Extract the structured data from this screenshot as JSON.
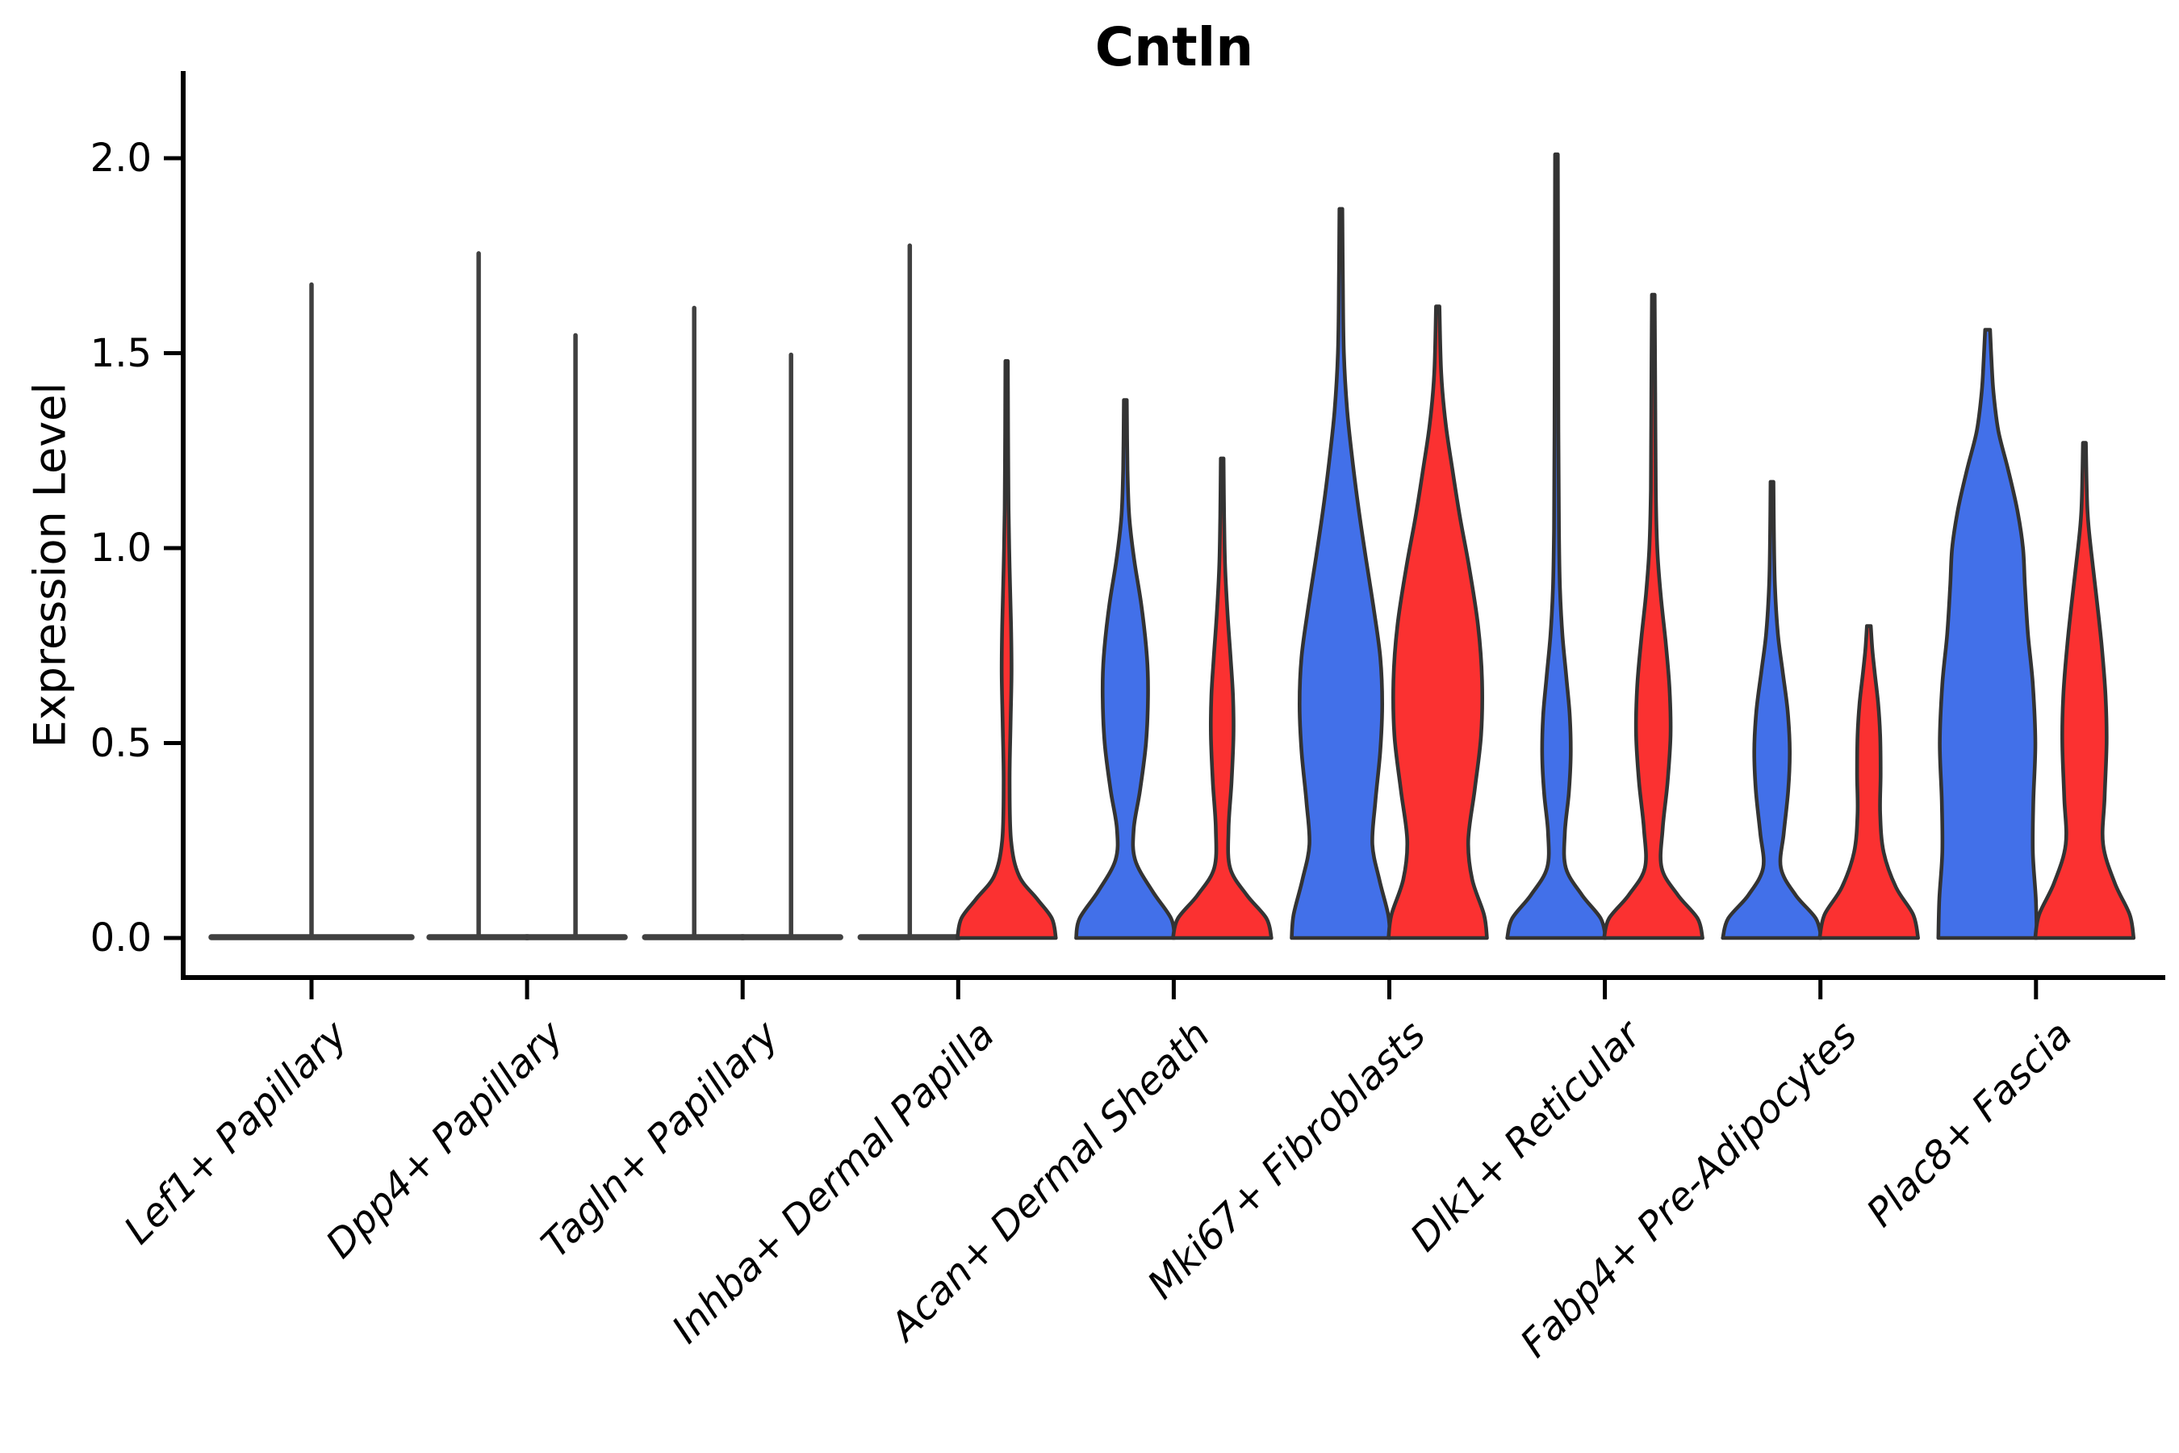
{
  "chart_data": {
    "type": "violin",
    "title": "Cntln",
    "ylabel": "Expression Level",
    "xlabel": "",
    "ylim": [
      0.0,
      2.07
    ],
    "grid": false,
    "legend": null,
    "x_label_rotation_deg": 45,
    "x_label_italic": true,
    "colors": {
      "blue": "#4270E9",
      "red": "#FB3131",
      "outline": "#333333",
      "collapsed_line": "#404040",
      "axis": "#000000"
    },
    "yticks": [
      {
        "value": 0.0,
        "label": "0.0"
      },
      {
        "value": 0.5,
        "label": "0.5"
      },
      {
        "value": 1.0,
        "label": "1.0"
      },
      {
        "value": 1.5,
        "label": "1.5"
      },
      {
        "value": 2.0,
        "label": "2.0"
      }
    ],
    "categories": [
      "Lef1+ Papillary",
      "Dpp4+ Papillary",
      "Tagln+ Papillary",
      "Inhba+ Dermal Papilla",
      "Acan+ Dermal Sheath",
      "Mki67+ Fibroblasts",
      "Dlk1+ Reticular",
      "Fabp4+ Pre-Adipocytes",
      "Plac8+ Fascia"
    ],
    "groups": [
      {
        "category": "Lef1+ Papillary",
        "violins": [
          {
            "hue": null,
            "position": "center",
            "collapsed": true,
            "max": 1.68,
            "wide": true
          }
        ]
      },
      {
        "category": "Dpp4+ Papillary",
        "violins": [
          {
            "hue": "blue",
            "position": "left",
            "collapsed": true,
            "max": 1.76
          },
          {
            "hue": "red",
            "position": "right",
            "collapsed": true,
            "max": 1.55
          }
        ]
      },
      {
        "category": "Tagln+ Papillary",
        "violins": [
          {
            "hue": "blue",
            "position": "left",
            "collapsed": true,
            "max": 1.62
          },
          {
            "hue": "red",
            "position": "right",
            "collapsed": true,
            "max": 1.5
          }
        ]
      },
      {
        "category": "Inhba+ Dermal Papilla",
        "violins": [
          {
            "hue": "blue",
            "position": "left",
            "collapsed": true,
            "max": 1.78
          },
          {
            "hue": "red",
            "position": "right",
            "collapsed": false,
            "max": 1.48,
            "profile": [
              [
                0,
                1.0
              ],
              [
                0.05,
                0.92
              ],
              [
                0.1,
                0.62
              ],
              [
                0.16,
                0.25
              ],
              [
                0.25,
                0.09
              ],
              [
                0.4,
                0.06
              ],
              [
                0.55,
                0.08
              ],
              [
                0.68,
                0.1
              ],
              [
                0.8,
                0.09
              ],
              [
                0.95,
                0.06
              ],
              [
                1.1,
                0.04
              ],
              [
                1.3,
                0.03
              ],
              [
                1.48,
                0.025
              ]
            ]
          }
        ]
      },
      {
        "category": "Acan+ Dermal Sheath",
        "violins": [
          {
            "hue": "blue",
            "position": "left",
            "collapsed": false,
            "max": 1.38,
            "profile": [
              [
                0,
                1.0
              ],
              [
                0.05,
                0.93
              ],
              [
                0.12,
                0.55
              ],
              [
                0.2,
                0.2
              ],
              [
                0.28,
                0.17
              ],
              [
                0.38,
                0.3
              ],
              [
                0.5,
                0.42
              ],
              [
                0.62,
                0.46
              ],
              [
                0.72,
                0.44
              ],
              [
                0.85,
                0.33
              ],
              [
                0.97,
                0.18
              ],
              [
                1.08,
                0.08
              ],
              [
                1.2,
                0.045
              ],
              [
                1.38,
                0.03
              ]
            ]
          },
          {
            "hue": "red",
            "position": "right",
            "collapsed": false,
            "max": 1.23,
            "profile": [
              [
                0,
                1.0
              ],
              [
                0.05,
                0.9
              ],
              [
                0.11,
                0.5
              ],
              [
                0.18,
                0.16
              ],
              [
                0.28,
                0.13
              ],
              [
                0.4,
                0.19
              ],
              [
                0.52,
                0.23
              ],
              [
                0.62,
                0.22
              ],
              [
                0.72,
                0.17
              ],
              [
                0.83,
                0.11
              ],
              [
                0.95,
                0.06
              ],
              [
                1.08,
                0.04
              ],
              [
                1.23,
                0.028
              ]
            ]
          }
        ]
      },
      {
        "category": "Mki67+ Fibroblasts",
        "violins": [
          {
            "hue": "blue",
            "position": "left",
            "collapsed": false,
            "max": 1.87,
            "profile": [
              [
                0,
                1.0
              ],
              [
                0.06,
                0.96
              ],
              [
                0.15,
                0.78
              ],
              [
                0.24,
                0.64
              ],
              [
                0.35,
                0.7
              ],
              [
                0.48,
                0.8
              ],
              [
                0.6,
                0.84
              ],
              [
                0.72,
                0.8
              ],
              [
                0.85,
                0.66
              ],
              [
                0.98,
                0.5
              ],
              [
                1.1,
                0.36
              ],
              [
                1.22,
                0.24
              ],
              [
                1.35,
                0.13
              ],
              [
                1.5,
                0.06
              ],
              [
                1.7,
                0.04
              ],
              [
                1.87,
                0.03
              ]
            ]
          },
          {
            "hue": "red",
            "position": "right",
            "collapsed": false,
            "max": 1.62,
            "profile": [
              [
                0,
                1.0
              ],
              [
                0.06,
                0.94
              ],
              [
                0.15,
                0.7
              ],
              [
                0.25,
                0.62
              ],
              [
                0.38,
                0.75
              ],
              [
                0.52,
                0.88
              ],
              [
                0.66,
                0.9
              ],
              [
                0.8,
                0.82
              ],
              [
                0.95,
                0.64
              ],
              [
                1.08,
                0.45
              ],
              [
                1.2,
                0.3
              ],
              [
                1.32,
                0.16
              ],
              [
                1.45,
                0.07
              ],
              [
                1.62,
                0.035
              ]
            ]
          }
        ]
      },
      {
        "category": "Dlk1+ Reticular",
        "violins": [
          {
            "hue": "blue",
            "position": "left",
            "collapsed": false,
            "max": 2.01,
            "profile": [
              [
                0,
                1.0
              ],
              [
                0.05,
                0.9
              ],
              [
                0.11,
                0.52
              ],
              [
                0.18,
                0.19
              ],
              [
                0.27,
                0.17
              ],
              [
                0.37,
                0.25
              ],
              [
                0.47,
                0.29
              ],
              [
                0.57,
                0.27
              ],
              [
                0.67,
                0.2
              ],
              [
                0.78,
                0.12
              ],
              [
                0.9,
                0.07
              ],
              [
                1.05,
                0.05
              ],
              [
                1.3,
                0.04
              ],
              [
                1.6,
                0.035
              ],
              [
                2.01,
                0.028
              ]
            ]
          },
          {
            "hue": "red",
            "position": "right",
            "collapsed": false,
            "max": 1.65,
            "profile": [
              [
                0,
                1.0
              ],
              [
                0.05,
                0.9
              ],
              [
                0.11,
                0.5
              ],
              [
                0.18,
                0.17
              ],
              [
                0.28,
                0.19
              ],
              [
                0.4,
                0.29
              ],
              [
                0.52,
                0.35
              ],
              [
                0.64,
                0.33
              ],
              [
                0.76,
                0.25
              ],
              [
                0.88,
                0.15
              ],
              [
                1.0,
                0.08
              ],
              [
                1.15,
                0.05
              ],
              [
                1.4,
                0.04
              ],
              [
                1.65,
                0.028
              ]
            ]
          }
        ]
      },
      {
        "category": "Fabp4+ Pre-Adipocytes",
        "violins": [
          {
            "hue": "blue",
            "position": "left",
            "collapsed": false,
            "max": 1.17,
            "profile": [
              [
                0,
                1.0
              ],
              [
                0.05,
                0.89
              ],
              [
                0.11,
                0.48
              ],
              [
                0.18,
                0.18
              ],
              [
                0.27,
                0.24
              ],
              [
                0.38,
                0.33
              ],
              [
                0.48,
                0.36
              ],
              [
                0.58,
                0.32
              ],
              [
                0.68,
                0.22
              ],
              [
                0.78,
                0.12
              ],
              [
                0.9,
                0.06
              ],
              [
                1.03,
                0.04
              ],
              [
                1.17,
                0.03
              ]
            ]
          },
          {
            "hue": "red",
            "position": "right",
            "collapsed": false,
            "max": 0.8,
            "profile": [
              [
                0,
                1.0
              ],
              [
                0.06,
                0.9
              ],
              [
                0.13,
                0.55
              ],
              [
                0.22,
                0.3
              ],
              [
                0.32,
                0.23
              ],
              [
                0.42,
                0.24
              ],
              [
                0.52,
                0.23
              ],
              [
                0.6,
                0.19
              ],
              [
                0.68,
                0.12
              ],
              [
                0.74,
                0.07
              ],
              [
                0.8,
                0.04
              ]
            ]
          }
        ]
      },
      {
        "category": "Plac8+ Fascia",
        "violins": [
          {
            "hue": "blue",
            "position": "left",
            "collapsed": false,
            "max": 1.56,
            "profile": [
              [
                0,
                1.0
              ],
              [
                0.1,
                0.98
              ],
              [
                0.22,
                0.92
              ],
              [
                0.35,
                0.93
              ],
              [
                0.5,
                0.97
              ],
              [
                0.65,
                0.92
              ],
              [
                0.78,
                0.82
              ],
              [
                0.9,
                0.76
              ],
              [
                1.0,
                0.72
              ],
              [
                1.1,
                0.6
              ],
              [
                1.2,
                0.42
              ],
              [
                1.3,
                0.22
              ],
              [
                1.4,
                0.12
              ],
              [
                1.48,
                0.08
              ],
              [
                1.56,
                0.05
              ]
            ]
          },
          {
            "hue": "red",
            "position": "right",
            "collapsed": false,
            "max": 1.27,
            "profile": [
              [
                0,
                1.0
              ],
              [
                0.06,
                0.92
              ],
              [
                0.14,
                0.62
              ],
              [
                0.24,
                0.38
              ],
              [
                0.36,
                0.41
              ],
              [
                0.5,
                0.45
              ],
              [
                0.62,
                0.43
              ],
              [
                0.75,
                0.35
              ],
              [
                0.88,
                0.24
              ],
              [
                1.0,
                0.13
              ],
              [
                1.1,
                0.06
              ],
              [
                1.27,
                0.03
              ]
            ]
          }
        ]
      }
    ]
  }
}
